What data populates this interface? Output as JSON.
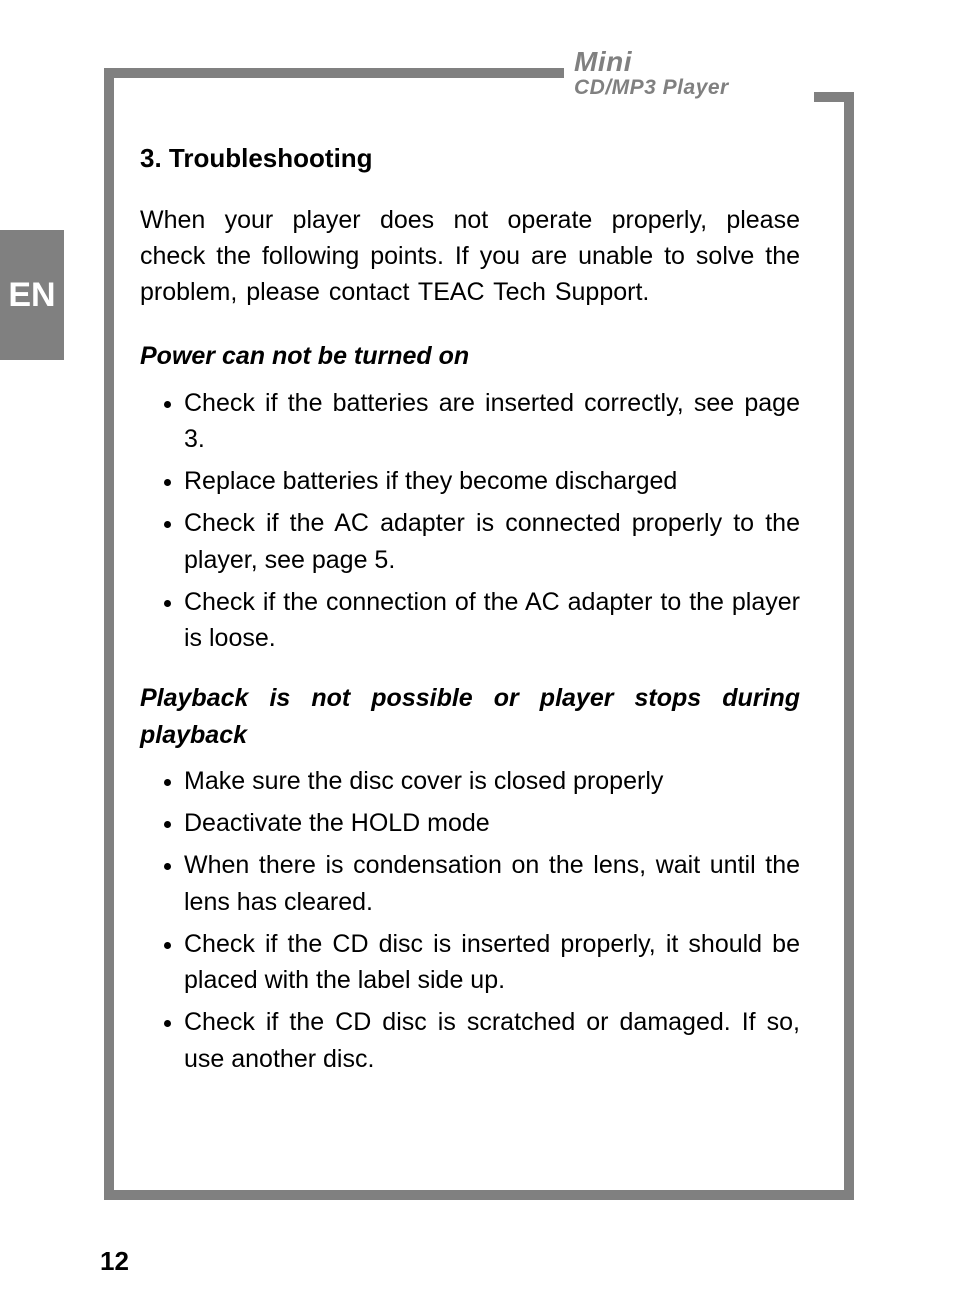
{
  "colors": {
    "frame": "#808080",
    "background": "#ffffff",
    "text": "#000000",
    "tab_bg": "#808080",
    "tab_text": "#ffffff"
  },
  "typography": {
    "body_font": "Trebuchet MS",
    "body_size_pt": 19,
    "title_size_pt": 20,
    "subtitle_style": "bold-italic"
  },
  "logo": {
    "line1": "Mini",
    "line2": "CD/MP3 Player"
  },
  "lang_tab": "EN",
  "section": {
    "title": "3. Troubleshooting",
    "intro": "When your player does not operate properly, please check the following points. If you are unable to solve the problem, please contact TEAC Tech Support."
  },
  "groups": [
    {
      "heading": "Power can not be turned on",
      "items": [
        "Check if the batteries are inserted correctly, see page 3.",
        "Replace batteries if they become discharged",
        "Check if the AC adapter is connected properly to the player, see page 5.",
        "Check if the connection of the AC adapter to the player is loose."
      ]
    },
    {
      "heading": "Playback is not possible or player stops dur­ing playback",
      "items": [
        "Make sure the disc cover is closed properly",
        "Deactivate the HOLD mode",
        "When there is condensation on the lens, wait until the lens has cleared.",
        "Check if the CD disc is inserted properly, it should be placed with the label side up.",
        "Check if the CD disc is scratched or damaged. If so, use another disc."
      ]
    }
  ],
  "page_number": "12"
}
